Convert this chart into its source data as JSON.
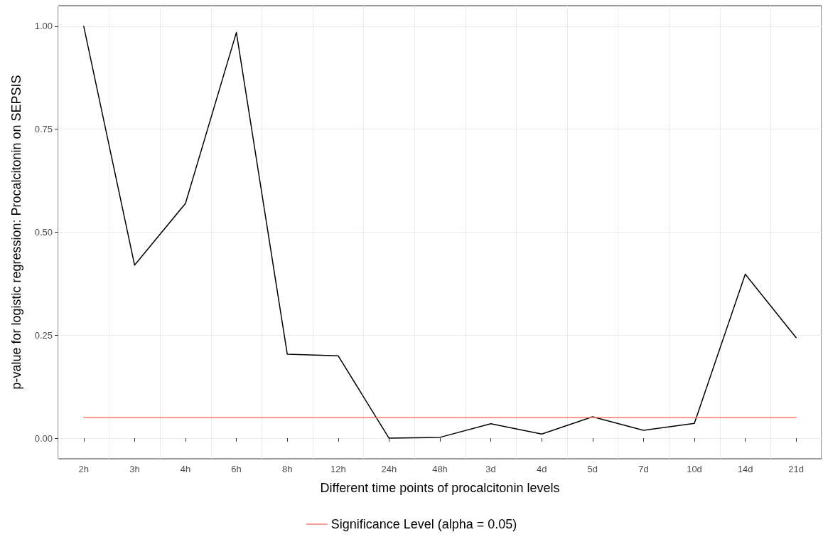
{
  "chart_data": {
    "type": "line",
    "xlabel": "Different time points of procalcitonin levels",
    "ylabel": "p-value for logistic regression: Procalcitonin on SEPSIS",
    "categories": [
      "2h",
      "3h",
      "4h",
      "6h",
      "8h",
      "12h",
      "24h",
      "48h",
      "3d",
      "4d",
      "5d",
      "7d",
      "10d",
      "14d",
      "21d"
    ],
    "series": [
      {
        "color": "#000000",
        "values": [
          1.0,
          0.42,
          0.57,
          0.985,
          0.204,
          0.2,
          0.0,
          0.002,
          0.035,
          0.01,
          0.052,
          0.019,
          0.036,
          0.398,
          0.244
        ]
      },
      {
        "name": "Significance Level (alpha = 0.05)",
        "color": "#f8766d",
        "values": [
          0.05,
          0.05,
          0.05,
          0.05,
          0.05,
          0.05,
          0.05,
          0.05,
          0.05,
          0.05,
          0.05,
          0.05,
          0.05,
          0.05,
          0.05
        ]
      }
    ],
    "ylim": [
      -0.05,
      1.05
    ],
    "yticks": [
      {
        "value": 0,
        "label": "0.00"
      },
      {
        "value": 0.25,
        "label": "0.25"
      },
      {
        "value": 0.5,
        "label": "0.50"
      },
      {
        "value": 0.75,
        "label": "0.75"
      },
      {
        "value": 1,
        "label": "1.00"
      }
    ],
    "grid": true,
    "legend": "bottom",
    "marker": "none",
    "line_style": "solid"
  }
}
